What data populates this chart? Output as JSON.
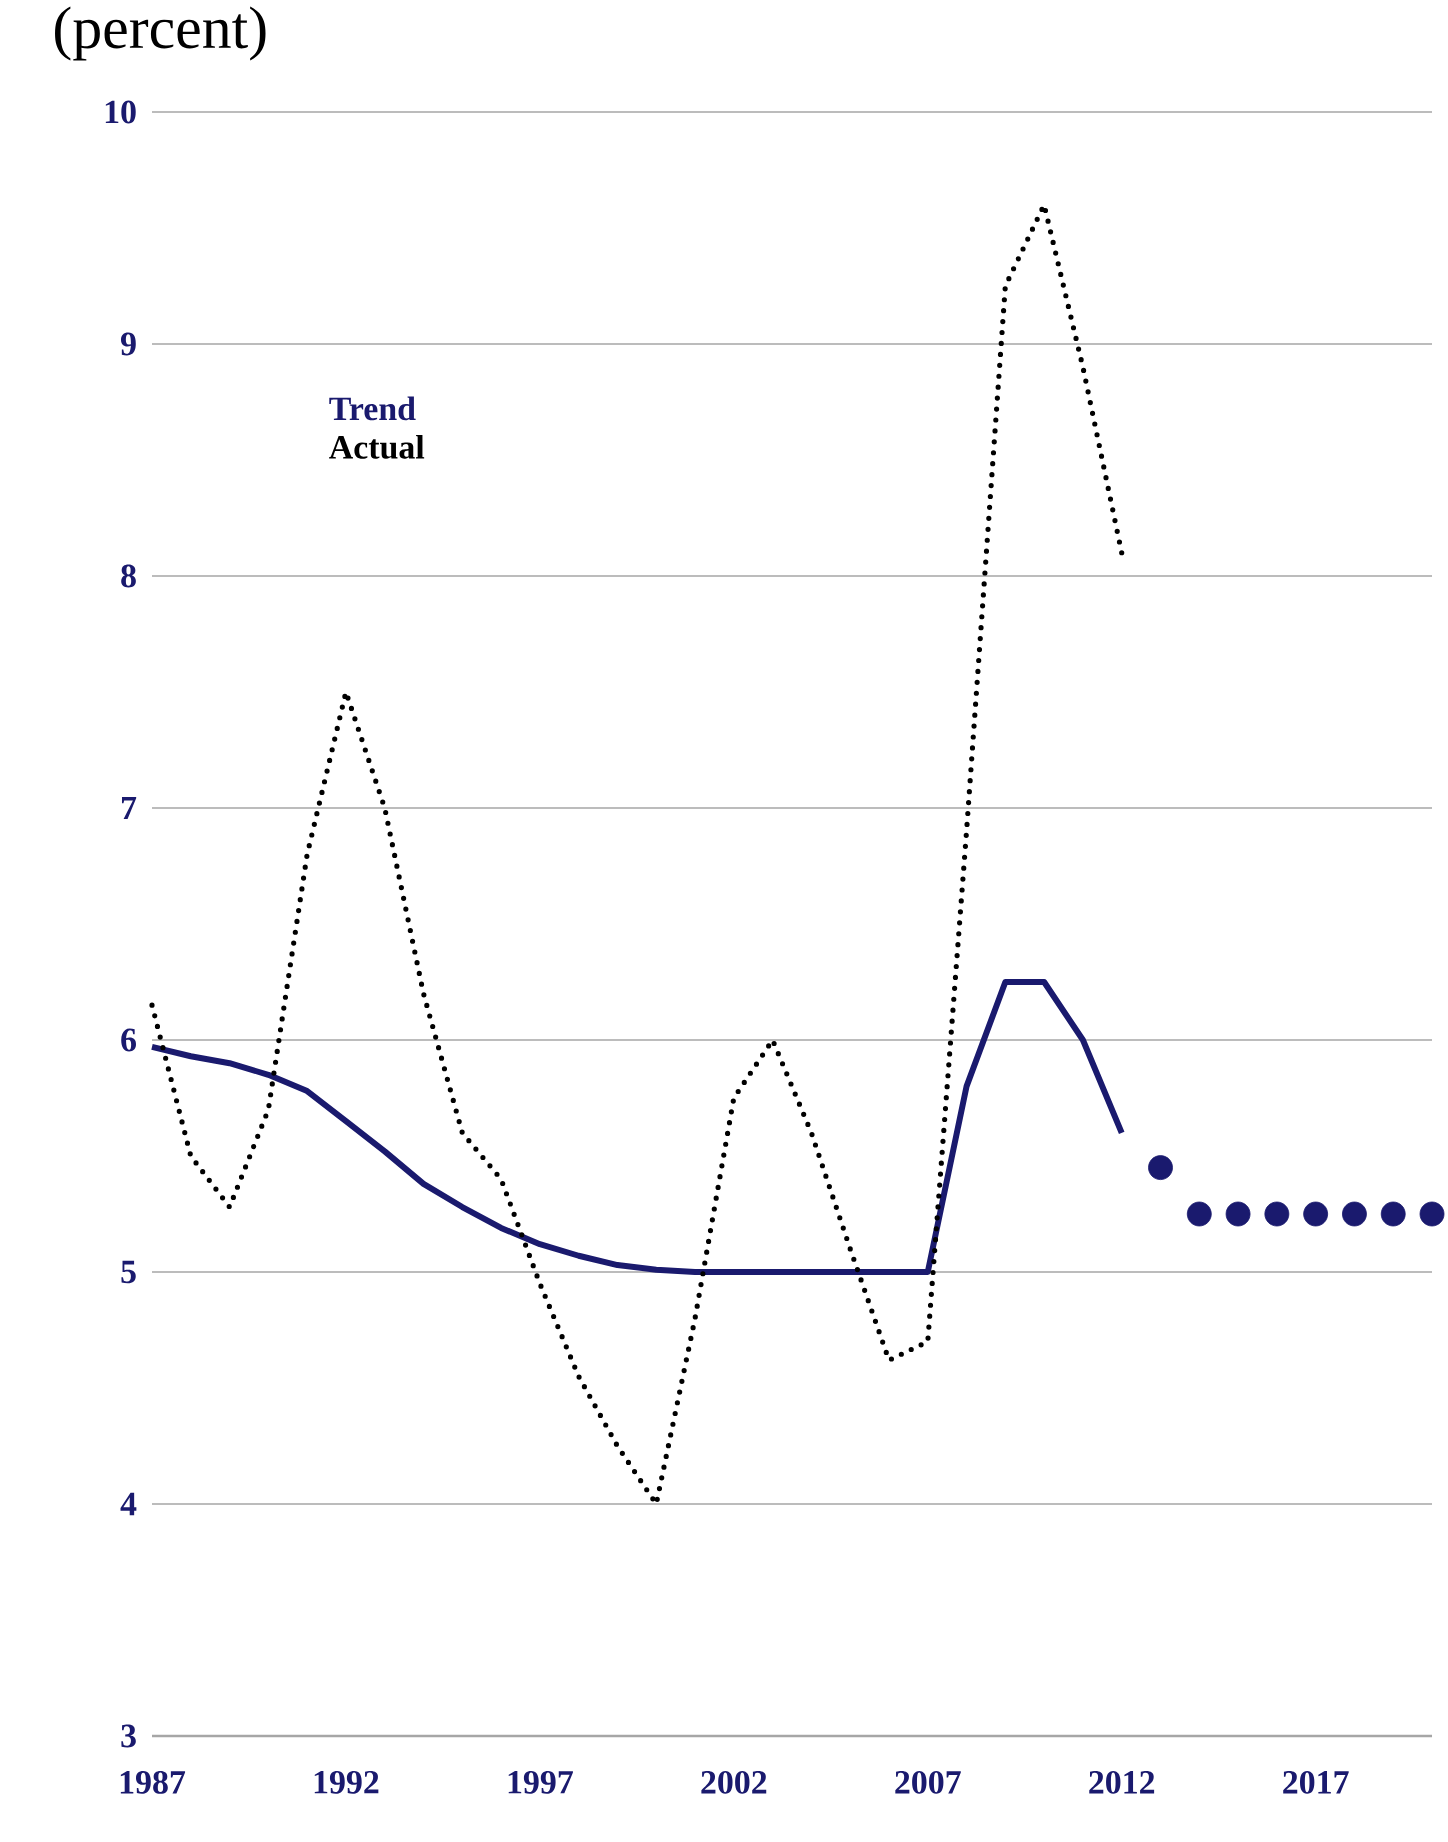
{
  "chart_data": {
    "type": "line",
    "ylabel": "(percent)",
    "xlim": [
      1987,
      2020
    ],
    "ylim": [
      3,
      10
    ],
    "xticks": [
      1987,
      1992,
      1997,
      2002,
      2007,
      2012,
      2017
    ],
    "yticks": [
      3,
      4,
      5,
      6,
      7,
      8,
      9,
      10
    ],
    "grid": "y",
    "legend": "top left",
    "series": [
      {
        "name": "Trend",
        "color": "#1a1a6e",
        "line_style": "solid",
        "x": [
          1987,
          1988,
          1989,
          1990,
          1991,
          1992,
          1993,
          1994,
          1995,
          1996,
          1997,
          1998,
          1999,
          2000,
          2001,
          2002,
          2003,
          2004,
          2005,
          2006,
          2007,
          2008,
          2009,
          2010,
          2011,
          2012
        ],
        "values": [
          5.97,
          5.93,
          5.9,
          5.85,
          5.78,
          5.65,
          5.52,
          5.38,
          5.28,
          5.19,
          5.12,
          5.07,
          5.03,
          5.01,
          5.0,
          5.0,
          5.0,
          5.0,
          5.0,
          5.0,
          5.0,
          5.8,
          6.25,
          6.25,
          6.0,
          5.6
        ]
      },
      {
        "name": "Actual",
        "color": "#000000",
        "line_style": "dotted",
        "x": [
          1987,
          1988,
          1989,
          1990,
          1991,
          1992,
          1993,
          1994,
          1995,
          1996,
          1997,
          1998,
          1999,
          2000,
          2001,
          2002,
          2003,
          2004,
          2005,
          2006,
          2007,
          2008,
          2009,
          2010,
          2011,
          2012
        ],
        "values": [
          6.15,
          5.5,
          5.28,
          5.7,
          6.8,
          7.5,
          7.0,
          6.2,
          5.6,
          5.4,
          4.95,
          4.55,
          4.25,
          4.0,
          4.8,
          5.75,
          6.0,
          5.6,
          5.1,
          4.62,
          4.7,
          6.9,
          9.25,
          9.6,
          8.9,
          8.1
        ]
      },
      {
        "color": "#1a1a6e",
        "type": "scatter",
        "marker": "circle",
        "x": [
          2013,
          2014,
          2015,
          2016,
          2017,
          2018,
          2019,
          2020
        ],
        "values": [
          5.45,
          5.25,
          5.25,
          5.25,
          5.25,
          5.25,
          5.25,
          5.25
        ]
      }
    ]
  }
}
